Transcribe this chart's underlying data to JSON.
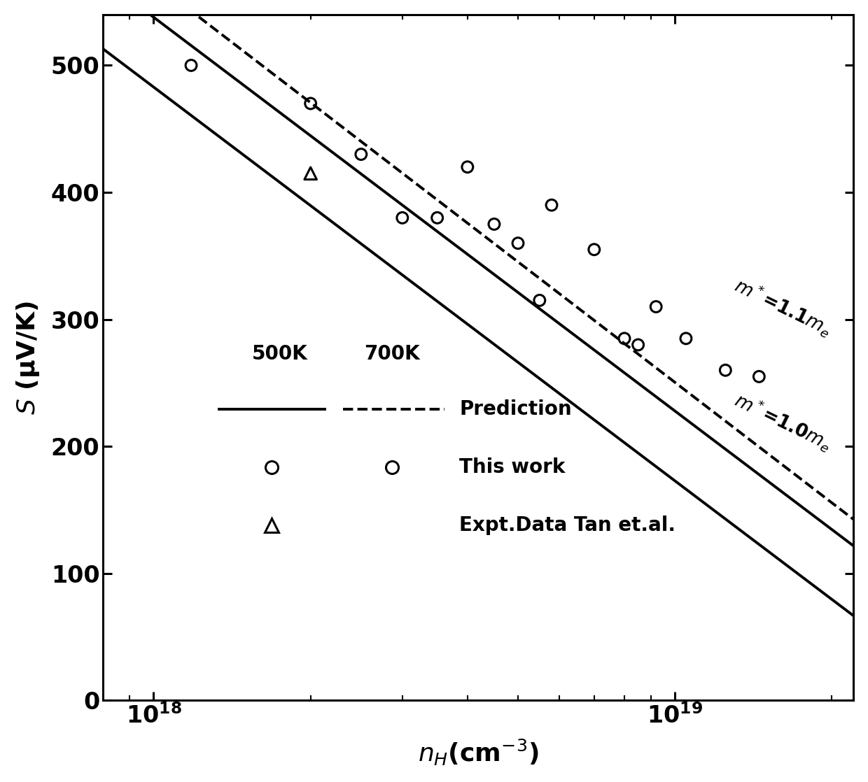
{
  "background_color": "#ffffff",
  "xlim": [
    8e+17,
    2.2e+19
  ],
  "ylim": [
    0,
    540
  ],
  "yticks": [
    0,
    100,
    200,
    300,
    400,
    500
  ],
  "scatter_500K_x": [
    1.18e+18,
    2e+18,
    2.5e+18,
    3.5e+18,
    4e+18
  ],
  "scatter_500K_y": [
    500,
    470,
    430,
    380,
    420
  ],
  "scatter_700K_x": [
    3e+18,
    4.5e+18,
    5e+18,
    5.5e+18,
    5.8e+18,
    7e+18,
    8e+18,
    8.5e+18,
    9.2e+18,
    1.05e+19,
    1.25e+19,
    1.45e+19
  ],
  "scatter_700K_y": [
    380,
    375,
    360,
    315,
    390,
    355,
    285,
    280,
    310,
    285,
    260,
    255
  ],
  "scatter_tan_x": [
    2e+18
  ],
  "scatter_tan_y": [
    415
  ],
  "xlabel": "$n_{H}$(cm$^{-3}$)",
  "ylabel": "$S$ (μV/K)",
  "axis_label_fontsize": 26,
  "tick_fontsize": 24,
  "legend_fontsize": 20,
  "annotation_fontsize": 19,
  "legend_pred_label": "Prediction",
  "legend_work_label": "This work",
  "legend_tan_label": "Expt.Data Tan et.al.",
  "legend_500K_label": "500K",
  "legend_700K_label": "700K"
}
